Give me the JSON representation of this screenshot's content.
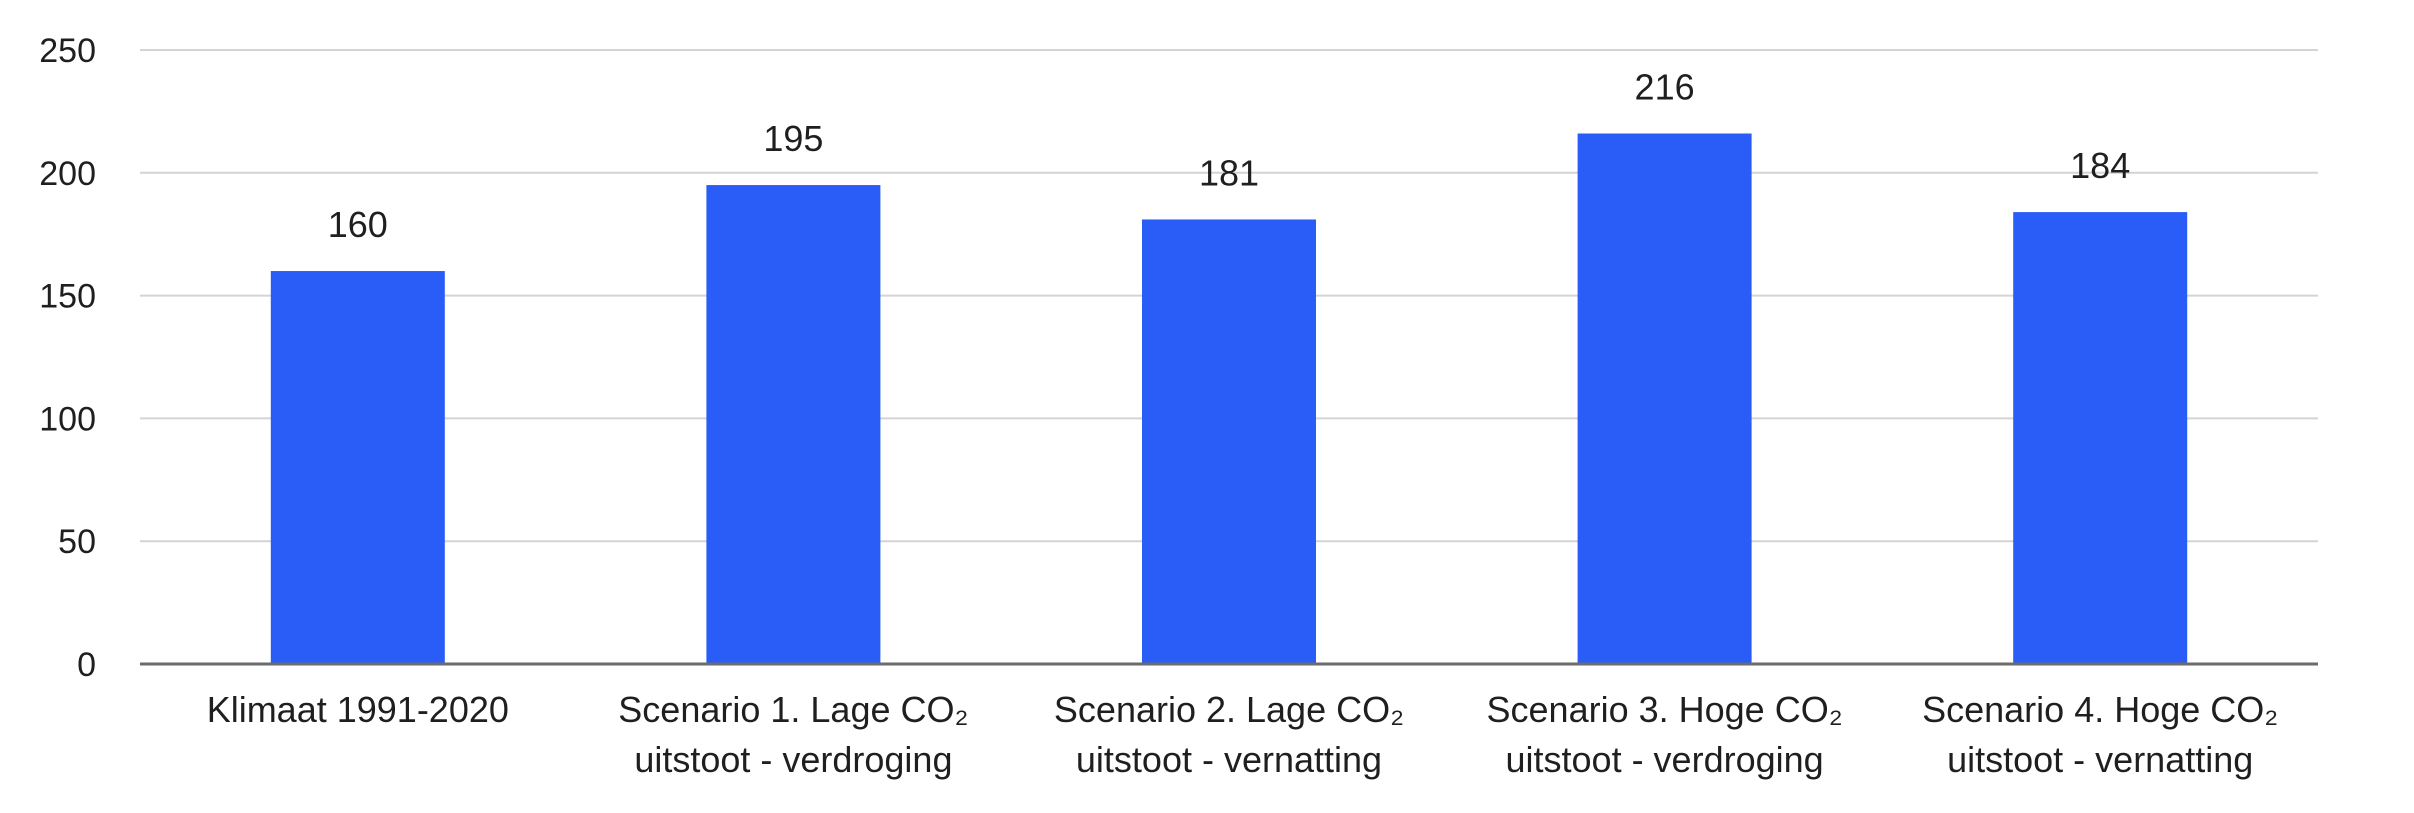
{
  "chart_data": {
    "type": "bar",
    "title": "",
    "xlabel": "",
    "ylabel": "",
    "ylim": [
      0,
      250
    ],
    "yticks": [
      0,
      50,
      100,
      150,
      200,
      250
    ],
    "grid": true,
    "legend": "none",
    "bar_color": "#2a5cf7",
    "categories": [
      [
        "Klimaat 1991-2020"
      ],
      [
        "Scenario 1. Lage CO₂",
        "uitstoot - verdroging"
      ],
      [
        "Scenario 2. Lage CO₂",
        "uitstoot - vernatting"
      ],
      [
        "Scenario 3. Hoge CO₂",
        "uitstoot - verdroging"
      ],
      [
        "Scenario 4. Hoge CO₂",
        "uitstoot - vernatting"
      ]
    ],
    "values": [
      160,
      195,
      181,
      216,
      184
    ]
  }
}
